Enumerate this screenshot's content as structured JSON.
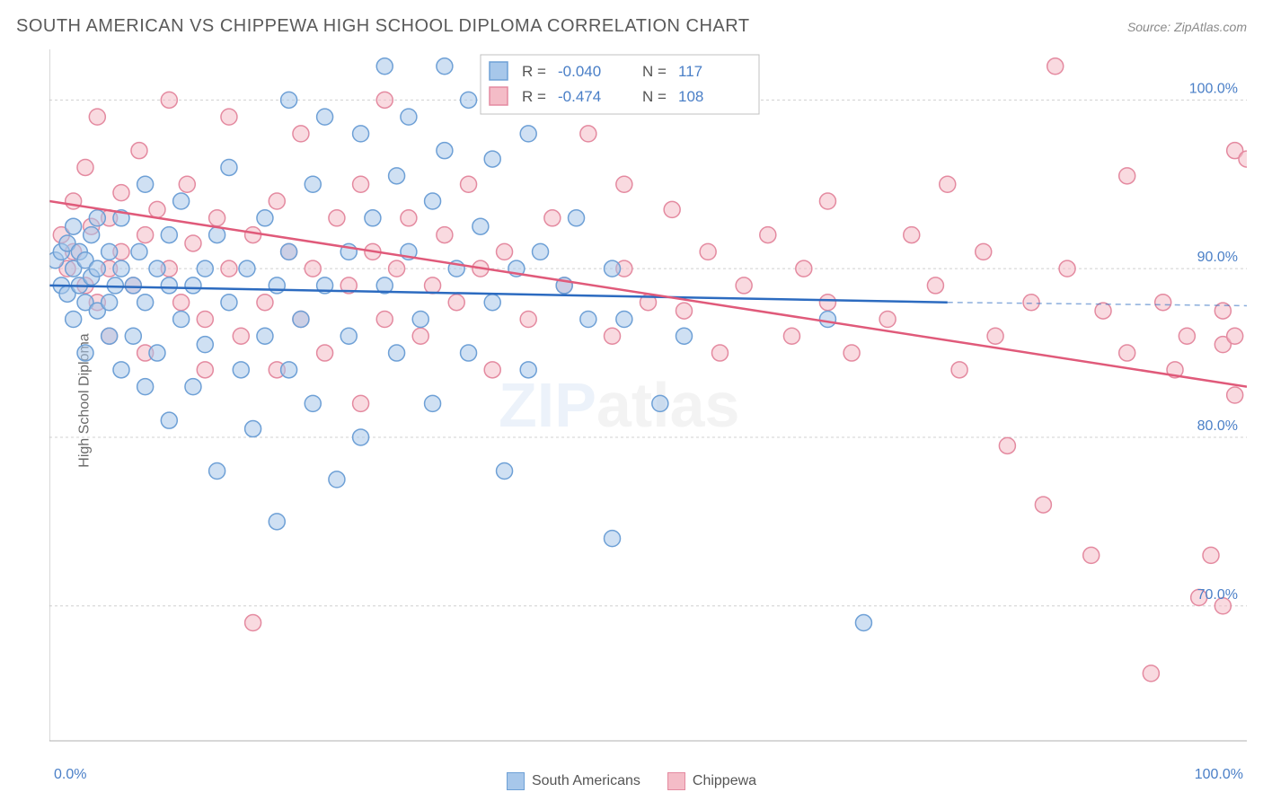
{
  "title": "SOUTH AMERICAN VS CHIPPEWA HIGH SCHOOL DIPLOMA CORRELATION CHART",
  "source": "Source: ZipAtlas.com",
  "yaxis_label": "High School Diploma",
  "watermark": {
    "zip": "ZIP",
    "atlas": "atlas",
    "zip_color": "#9abbe4",
    "atlas_color": "#bfbfbf"
  },
  "chart": {
    "type": "scatter-with-regression",
    "xlim": [
      0,
      100
    ],
    "ylim": [
      62,
      103
    ],
    "yticks": [
      70,
      80,
      90,
      100
    ],
    "ytick_labels": [
      "70.0%",
      "80.0%",
      "90.0%",
      "100.0%"
    ],
    "xticks_shown": [
      0,
      100
    ],
    "xtick_labels": [
      "0.0%",
      "100.0%"
    ],
    "grid_color": "#d0d0d0",
    "axis_color": "#b0b0b0",
    "background": "#ffffff",
    "marker_radius": 9,
    "marker_stroke_width": 1.5,
    "series": [
      {
        "name": "South Americans",
        "fill": "#a7c7ea",
        "stroke": "#6ea0d6",
        "fill_opacity": 0.55,
        "R": "-0.040",
        "N": "117",
        "regression": {
          "x1": 0,
          "y1": 89,
          "x2": 75,
          "y2": 88,
          "dash_from_x": 75,
          "dash_to_x": 100,
          "dash_y": 87.8,
          "color": "#2c6bc0",
          "width": 2.5
        },
        "points": [
          [
            0.5,
            90.5
          ],
          [
            1,
            89
          ],
          [
            1,
            91
          ],
          [
            1.5,
            88.5
          ],
          [
            1.5,
            91.5
          ],
          [
            2,
            87
          ],
          [
            2,
            90
          ],
          [
            2,
            92.5
          ],
          [
            2.5,
            89
          ],
          [
            2.5,
            91
          ],
          [
            3,
            88
          ],
          [
            3,
            90.5
          ],
          [
            3,
            85
          ],
          [
            3.5,
            92
          ],
          [
            3.5,
            89.5
          ],
          [
            4,
            90
          ],
          [
            4,
            87.5
          ],
          [
            4,
            93
          ],
          [
            5,
            88
          ],
          [
            5,
            91
          ],
          [
            5,
            86
          ],
          [
            5.5,
            89
          ],
          [
            6,
            90
          ],
          [
            6,
            84
          ],
          [
            6,
            93
          ],
          [
            7,
            89
          ],
          [
            7,
            86
          ],
          [
            7.5,
            91
          ],
          [
            8,
            88
          ],
          [
            8,
            95
          ],
          [
            8,
            83
          ],
          [
            9,
            90
          ],
          [
            9,
            85
          ],
          [
            10,
            89
          ],
          [
            10,
            92
          ],
          [
            10,
            81
          ],
          [
            11,
            87
          ],
          [
            11,
            94
          ],
          [
            12,
            89
          ],
          [
            12,
            83
          ],
          [
            13,
            90
          ],
          [
            13,
            85.5
          ],
          [
            14,
            92
          ],
          [
            14,
            78
          ],
          [
            15,
            88
          ],
          [
            15,
            96
          ],
          [
            16,
            84
          ],
          [
            16.5,
            90
          ],
          [
            17,
            80.5
          ],
          [
            18,
            93
          ],
          [
            18,
            86
          ],
          [
            19,
            89
          ],
          [
            19,
            75
          ],
          [
            20,
            91
          ],
          [
            20,
            84
          ],
          [
            20,
            100
          ],
          [
            21,
            87
          ],
          [
            22,
            95
          ],
          [
            22,
            82
          ],
          [
            23,
            89
          ],
          [
            23,
            99
          ],
          [
            24,
            77.5
          ],
          [
            25,
            91
          ],
          [
            25,
            86
          ],
          [
            26,
            98
          ],
          [
            26,
            80
          ],
          [
            27,
            93
          ],
          [
            28,
            89
          ],
          [
            28,
            102
          ],
          [
            29,
            85
          ],
          [
            29,
            95.5
          ],
          [
            30,
            91
          ],
          [
            30,
            99
          ],
          [
            31,
            87
          ],
          [
            32,
            94
          ],
          [
            32,
            82
          ],
          [
            33,
            97
          ],
          [
            33,
            102
          ],
          [
            34,
            90
          ],
          [
            35,
            85
          ],
          [
            35,
            100
          ],
          [
            36,
            92.5
          ],
          [
            37,
            88
          ],
          [
            37,
            96.5
          ],
          [
            38,
            101
          ],
          [
            38,
            78
          ],
          [
            39,
            90
          ],
          [
            40,
            84
          ],
          [
            40,
            98
          ],
          [
            41,
            91
          ],
          [
            42,
            100
          ],
          [
            43,
            89
          ],
          [
            44,
            93
          ],
          [
            45,
            87
          ],
          [
            46,
            102
          ],
          [
            47,
            90
          ],
          [
            47,
            74
          ],
          [
            48,
            87
          ],
          [
            51,
            82
          ],
          [
            53,
            86
          ],
          [
            65,
            87
          ],
          [
            68,
            69
          ]
        ]
      },
      {
        "name": "Chippewa",
        "fill": "#f4bcc7",
        "stroke": "#e48aa0",
        "fill_opacity": 0.55,
        "R": "-0.474",
        "N": "108",
        "regression": {
          "x1": 0,
          "y1": 94,
          "x2": 100,
          "y2": 83,
          "color": "#e05a7a",
          "width": 2.5
        },
        "points": [
          [
            1,
            92
          ],
          [
            1.5,
            90
          ],
          [
            2,
            94
          ],
          [
            2,
            91
          ],
          [
            3,
            89
          ],
          [
            3,
            96
          ],
          [
            3.5,
            92.5
          ],
          [
            4,
            88
          ],
          [
            4,
            99
          ],
          [
            5,
            93
          ],
          [
            5,
            90
          ],
          [
            5,
            86
          ],
          [
            6,
            94.5
          ],
          [
            6,
            91
          ],
          [
            7,
            89
          ],
          [
            7.5,
            97
          ],
          [
            8,
            92
          ],
          [
            8,
            85
          ],
          [
            9,
            93.5
          ],
          [
            10,
            90
          ],
          [
            10,
            100
          ],
          [
            11,
            88
          ],
          [
            11.5,
            95
          ],
          [
            12,
            91.5
          ],
          [
            13,
            87
          ],
          [
            13,
            84
          ],
          [
            14,
            93
          ],
          [
            15,
            90
          ],
          [
            15,
            99
          ],
          [
            16,
            86
          ],
          [
            17,
            92
          ],
          [
            17,
            69
          ],
          [
            18,
            88
          ],
          [
            19,
            94
          ],
          [
            19,
            84
          ],
          [
            20,
            91
          ],
          [
            21,
            87
          ],
          [
            21,
            98
          ],
          [
            22,
            90
          ],
          [
            23,
            85
          ],
          [
            24,
            93
          ],
          [
            25,
            89
          ],
          [
            26,
            95
          ],
          [
            26,
            82
          ],
          [
            27,
            91
          ],
          [
            28,
            87
          ],
          [
            28,
            100
          ],
          [
            29,
            90
          ],
          [
            30,
            93
          ],
          [
            31,
            86
          ],
          [
            32,
            89
          ],
          [
            33,
            92
          ],
          [
            34,
            88
          ],
          [
            35,
            95
          ],
          [
            36,
            90
          ],
          [
            37,
            84
          ],
          [
            38,
            91
          ],
          [
            40,
            87
          ],
          [
            42,
            93
          ],
          [
            43,
            89
          ],
          [
            45,
            98
          ],
          [
            47,
            86
          ],
          [
            48,
            90
          ],
          [
            48,
            95
          ],
          [
            50,
            88
          ],
          [
            52,
            93.5
          ],
          [
            53,
            87.5
          ],
          [
            55,
            91
          ],
          [
            56,
            85
          ],
          [
            58,
            89
          ],
          [
            60,
            92
          ],
          [
            62,
            86
          ],
          [
            63,
            90
          ],
          [
            65,
            88
          ],
          [
            65,
            94
          ],
          [
            67,
            85
          ],
          [
            70,
            87
          ],
          [
            72,
            92
          ],
          [
            74,
            89
          ],
          [
            75,
            95
          ],
          [
            76,
            84
          ],
          [
            78,
            91
          ],
          [
            79,
            86
          ],
          [
            80,
            79.5
          ],
          [
            82,
            88
          ],
          [
            83,
            76
          ],
          [
            84,
            102
          ],
          [
            85,
            90
          ],
          [
            87,
            73
          ],
          [
            88,
            87.5
          ],
          [
            90,
            85
          ],
          [
            90,
            95.5
          ],
          [
            92,
            66
          ],
          [
            93,
            88
          ],
          [
            94,
            84
          ],
          [
            95,
            86
          ],
          [
            96,
            70.5
          ],
          [
            97,
            73
          ],
          [
            98,
            70
          ],
          [
            98,
            85.5
          ],
          [
            98,
            87.5
          ],
          [
            99,
            82.5
          ],
          [
            99,
            86
          ],
          [
            99,
            97
          ],
          [
            100,
            96.5
          ]
        ]
      }
    ]
  },
  "top_legend": {
    "rows": [
      {
        "swatch_fill": "#a7c7ea",
        "swatch_stroke": "#6ea0d6",
        "R_label": "R =",
        "R": "-0.040",
        "N_label": "N =",
        "N": "117"
      },
      {
        "swatch_fill": "#f4bcc7",
        "swatch_stroke": "#e48aa0",
        "R_label": "R =",
        "R": "-0.474",
        "N_label": "N =",
        "N": "108"
      }
    ]
  },
  "bottom_legend": {
    "items": [
      {
        "label": "South Americans",
        "fill": "#a7c7ea",
        "stroke": "#6ea0d6"
      },
      {
        "label": "Chippewa",
        "fill": "#f4bcc7",
        "stroke": "#e48aa0"
      }
    ]
  }
}
